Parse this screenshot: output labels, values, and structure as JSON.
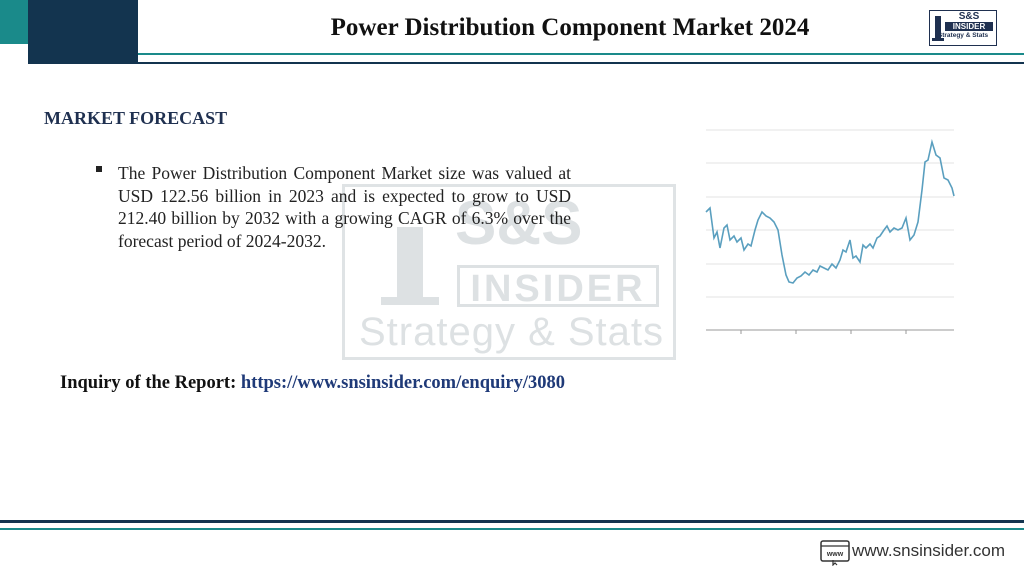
{
  "header": {
    "title": "Power Distribution Component Market 2024",
    "logo": {
      "top": "S&S",
      "middle": "INSIDER",
      "bottom": "Strategy & Stats"
    }
  },
  "section": {
    "heading": "MARKET FORECAST",
    "bullets": [
      "The Power Distribution Component Market size was valued at USD 122.56 billion in 2023 and is expected to grow to USD 212.40 billion by 2032 with a growing CAGR of 6.3% over the forecast period of 2024-2032."
    ]
  },
  "inquiry": {
    "label": "Inquiry of the Report:",
    "url": "https://www.snsinsider.com/enquiry/3080"
  },
  "footer": {
    "icon": "www",
    "website": "www.snsinsider.com"
  }
}
